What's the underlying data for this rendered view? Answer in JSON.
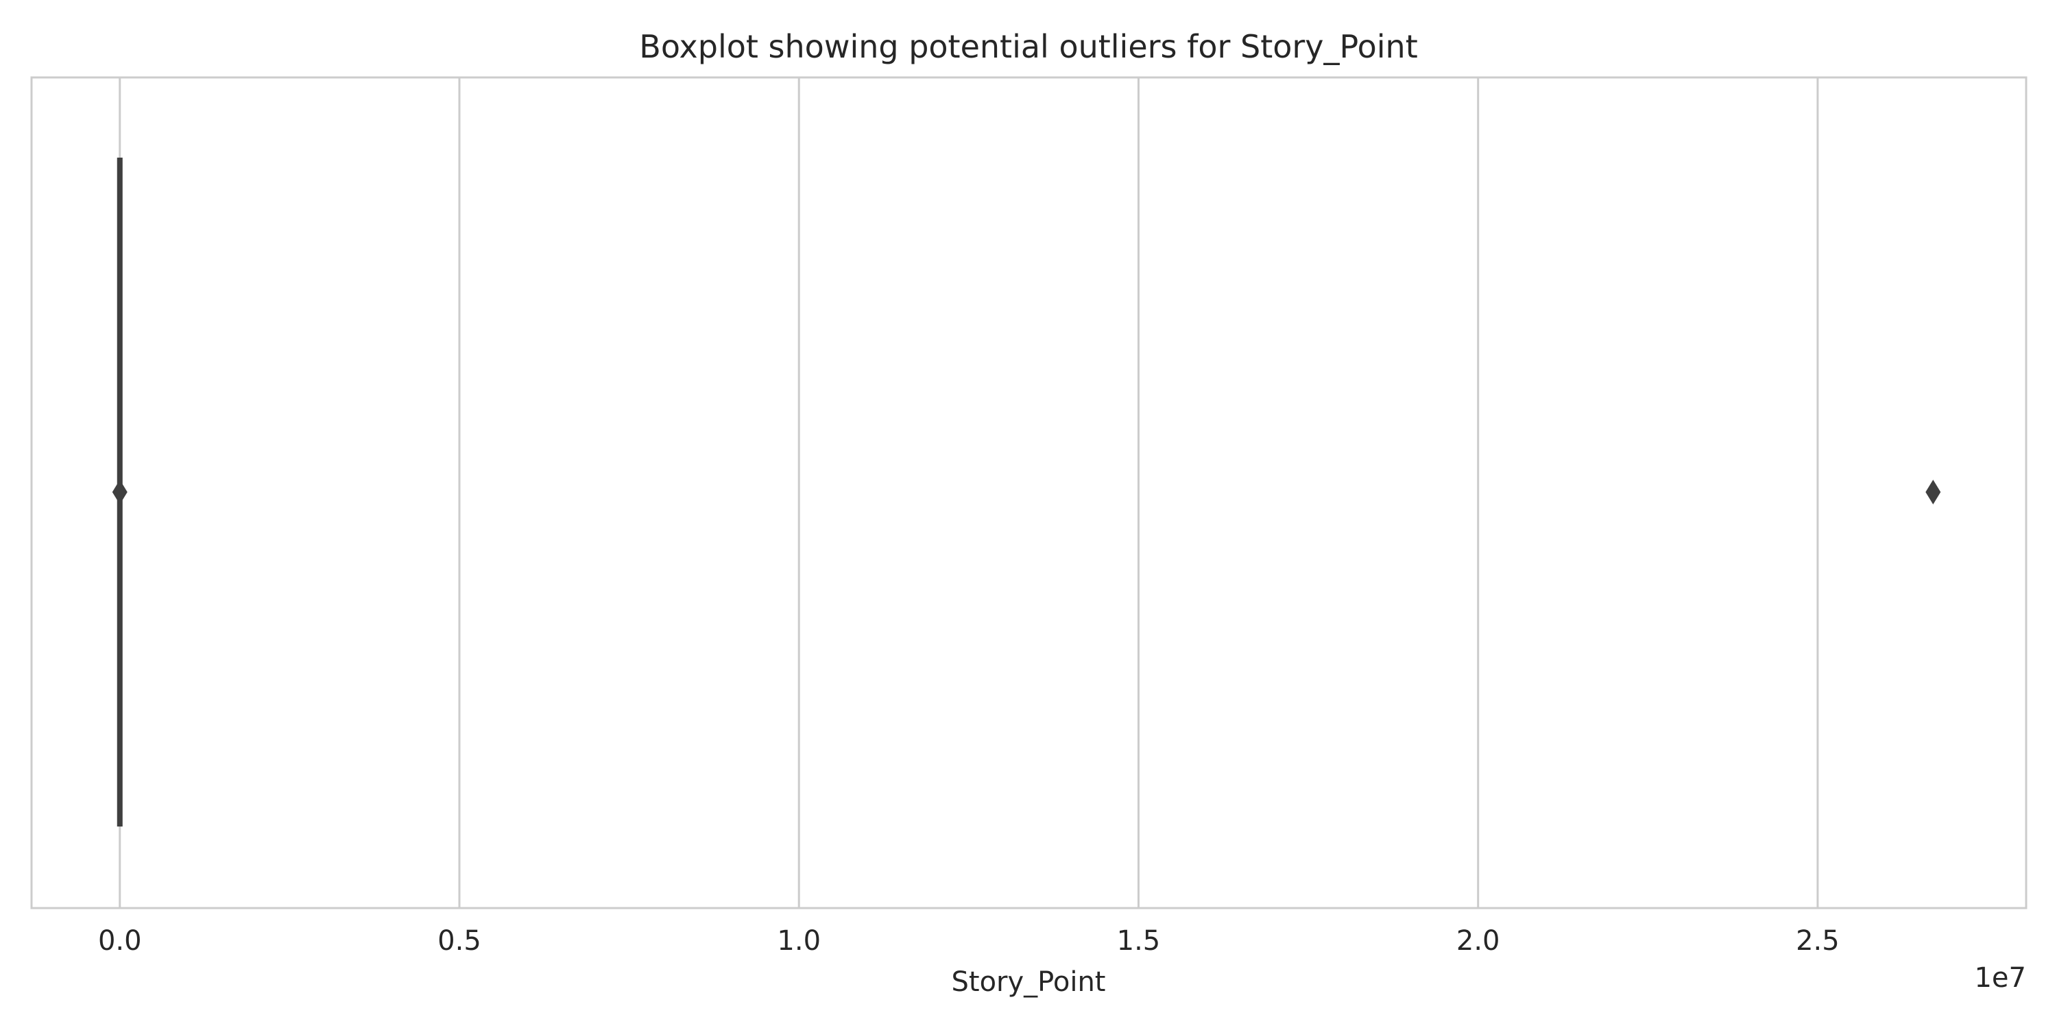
{
  "chart_data": {
    "type": "boxplot",
    "title": "Boxplot showing potential outliers for Story_Point",
    "xlabel": "Story_Point",
    "ylabel": "",
    "x_offset_label": "1e7",
    "xlim": [
      -0.13,
      2.807
    ],
    "x_ticks": [
      0.0,
      0.5,
      1.0,
      1.5,
      2.0,
      2.5
    ],
    "x_tick_labels": [
      "0.0",
      "0.5",
      "1.0",
      "1.5",
      "2.0",
      "2.5"
    ],
    "grid": "x",
    "orientation": "horizontal",
    "box": {
      "whisker_low": 0.0,
      "q1": 0.0,
      "median": 0.0,
      "q3": 0.0,
      "whisker_high": 0.0
    },
    "outliers": [
      0.0,
      2.67
    ],
    "colors": {
      "box": "#3f3f3f",
      "grid": "#cccccc",
      "text": "#262626"
    }
  }
}
